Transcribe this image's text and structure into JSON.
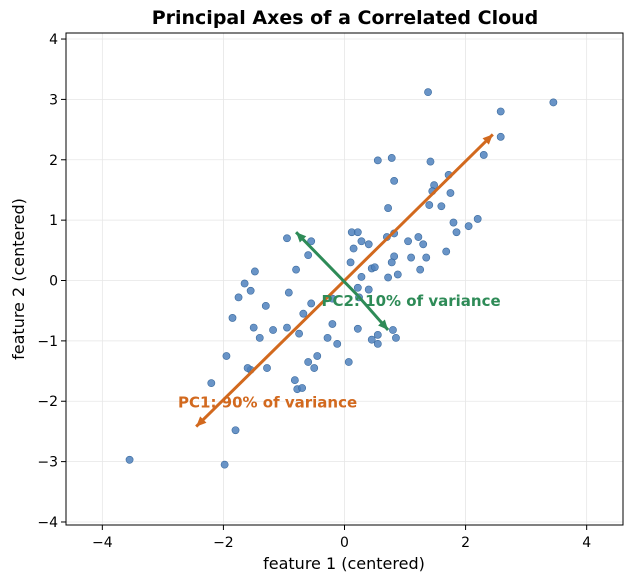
{
  "chart_data": {
    "type": "scatter",
    "title": "Principal Axes of a Correlated Cloud",
    "xlabel": "feature 1 (centered)",
    "ylabel": "feature 2 (centered)",
    "xlim": [
      -4.6,
      4.6
    ],
    "ylim": [
      -4.05,
      4.1
    ],
    "xticks": [
      -4,
      -2,
      0,
      2,
      4
    ],
    "yticks": [
      -4,
      -3,
      -2,
      -1,
      0,
      1,
      2,
      3,
      4
    ],
    "xtick_labels": [
      "−4",
      "−2",
      "0",
      "2",
      "4"
    ],
    "ytick_labels": [
      "−4",
      "−3",
      "−2",
      "−1",
      "0",
      "1",
      "2",
      "3",
      "4"
    ],
    "grid": true,
    "colors": {
      "points": "#4f81bd",
      "pc1": "#d2691e",
      "pc2": "#2e8b57"
    },
    "points": [
      [
        1.38,
        3.12
      ],
      [
        2.58,
        2.8
      ],
      [
        3.45,
        2.95
      ],
      [
        2.58,
        2.38
      ],
      [
        2.3,
        2.08
      ],
      [
        0.78,
        2.03
      ],
      [
        0.55,
        1.99
      ],
      [
        1.42,
        1.97
      ],
      [
        1.72,
        1.75
      ],
      [
        0.82,
        1.65
      ],
      [
        1.48,
        1.58
      ],
      [
        1.45,
        1.48
      ],
      [
        1.75,
        1.45
      ],
      [
        1.4,
        1.25
      ],
      [
        1.6,
        1.23
      ],
      [
        0.72,
        1.2
      ],
      [
        1.8,
        0.96
      ],
      [
        2.05,
        0.9
      ],
      [
        2.2,
        1.02
      ],
      [
        1.85,
        0.8
      ],
      [
        -0.95,
        0.7
      ],
      [
        -0.55,
        0.65
      ],
      [
        0.12,
        0.8
      ],
      [
        0.22,
        0.8
      ],
      [
        0.28,
        0.65
      ],
      [
        0.15,
        0.53
      ],
      [
        0.4,
        0.6
      ],
      [
        0.7,
        0.72
      ],
      [
        0.82,
        0.78
      ],
      [
        1.22,
        0.72
      ],
      [
        1.3,
        0.6
      ],
      [
        1.05,
        0.65
      ],
      [
        1.1,
        0.38
      ],
      [
        0.82,
        0.4
      ],
      [
        0.78,
        0.3
      ],
      [
        1.35,
        0.38
      ],
      [
        1.68,
        0.48
      ],
      [
        -0.6,
        0.42
      ],
      [
        0.1,
        0.3
      ],
      [
        0.28,
        0.06
      ],
      [
        0.45,
        0.2
      ],
      [
        0.5,
        0.22
      ],
      [
        0.88,
        0.1
      ],
      [
        1.25,
        0.18
      ],
      [
        0.72,
        0.05
      ],
      [
        -1.48,
        0.15
      ],
      [
        -0.8,
        0.18
      ],
      [
        -1.65,
        -0.05
      ],
      [
        -1.75,
        -0.28
      ],
      [
        -1.55,
        -0.17
      ],
      [
        -0.92,
        -0.2
      ],
      [
        0.22,
        -0.12
      ],
      [
        0.4,
        -0.15
      ],
      [
        0.24,
        -0.28
      ],
      [
        -0.2,
        -0.3
      ],
      [
        -1.3,
        -0.42
      ],
      [
        -0.55,
        -0.38
      ],
      [
        -0.68,
        -0.55
      ],
      [
        -1.85,
        -0.62
      ],
      [
        -0.2,
        -0.72
      ],
      [
        -1.5,
        -0.78
      ],
      [
        -0.95,
        -0.78
      ],
      [
        -1.18,
        -0.82
      ],
      [
        -0.75,
        -0.88
      ],
      [
        0.22,
        -0.8
      ],
      [
        0.8,
        -0.82
      ],
      [
        0.85,
        -0.95
      ],
      [
        -1.4,
        -0.95
      ],
      [
        -0.28,
        -0.95
      ],
      [
        0.55,
        -0.9
      ],
      [
        0.45,
        -0.98
      ],
      [
        -0.12,
        -1.05
      ],
      [
        0.55,
        -1.05
      ],
      [
        -1.95,
        -1.25
      ],
      [
        -0.45,
        -1.25
      ],
      [
        -0.6,
        -1.35
      ],
      [
        0.07,
        -1.35
      ],
      [
        -1.55,
        -1.48
      ],
      [
        -1.6,
        -1.45
      ],
      [
        -1.28,
        -1.45
      ],
      [
        -0.5,
        -1.45
      ],
      [
        -0.82,
        -1.65
      ],
      [
        -0.78,
        -1.8
      ],
      [
        -0.7,
        -1.78
      ],
      [
        -2.2,
        -1.7
      ],
      [
        -1.8,
        -2.48
      ],
      [
        -3.55,
        -2.97
      ],
      [
        -1.98,
        -3.05
      ]
    ],
    "pc_arrows": [
      {
        "name": "PC1",
        "label": "PC1: 90% of variance",
        "from": [
          0,
          0
        ],
        "to": [
          2.45,
          2.42
        ],
        "bidirectional": true,
        "to2": [
          -2.45,
          -2.42
        ],
        "label_at": [
          -2.75,
          -2.1
        ]
      },
      {
        "name": "PC2",
        "label": "PC2: 10% of variance",
        "from": [
          0.22,
          -0.25
        ],
        "to": [
          -0.8,
          0.8
        ],
        "bidirectional": true,
        "to2": [
          0.72,
          -0.82
        ],
        "label_at": [
          -0.38,
          -0.42
        ]
      }
    ]
  }
}
